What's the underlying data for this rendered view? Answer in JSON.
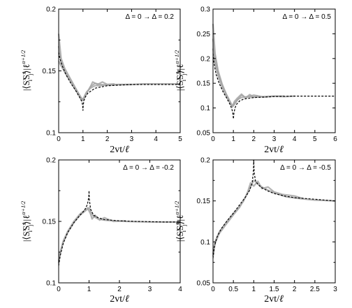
{
  "figure": {
    "xlabel_main": "2vt/",
    "xlabel_ell": "ℓ",
    "ylabel_parts": {
      "open": "|⟨S",
      "sup1": "x",
      "sub1": "i",
      "mid": "S",
      "sup2": "x",
      "sub2": "j",
      "close": "⟩|ℓ",
      "exp": "α+1/2"
    }
  },
  "colors": {
    "data_gray": "#a6a6a6",
    "theory_black": "#000000",
    "axis": "#000000"
  },
  "chart_data": [
    {
      "type": "line",
      "panel": "top-left",
      "annotation": "Δ = 0 → Δ = 0.2",
      "xlim": [
        0,
        5
      ],
      "ylim": [
        0.1,
        0.2
      ],
      "xticks": [
        0,
        1,
        2,
        3,
        4,
        5
      ],
      "xtick_labels": [
        "0",
        "1",
        "2",
        "3",
        "4",
        "5"
      ],
      "yticks": [
        0.1,
        0.15,
        0.2
      ],
      "ytick_labels": [
        "0.1",
        "0.15",
        "0.2"
      ],
      "yminor": [
        0.125,
        0.175
      ],
      "series": [
        {
          "style": "data",
          "x": [
            0,
            0.1,
            0.25,
            0.5,
            0.75,
            0.9,
            0.98,
            1.05,
            1.15,
            1.3,
            1.5,
            1.7,
            2.0,
            2.5,
            3.0,
            3.5,
            4.0,
            4.5,
            5.0
          ],
          "y": [
            0.158,
            0.154,
            0.149,
            0.141,
            0.133,
            0.128,
            0.126,
            0.129,
            0.133,
            0.136,
            0.138,
            0.138,
            0.139,
            0.139,
            0.139,
            0.1395,
            0.1395,
            0.1395,
            0.1395
          ]
        },
        {
          "style": "data",
          "x": [
            0,
            0.1,
            0.25,
            0.5,
            0.75,
            0.9,
            0.98,
            1.05,
            1.15,
            1.3,
            1.5,
            1.7,
            2.0,
            2.5,
            3.0
          ],
          "y": [
            0.18,
            0.16,
            0.152,
            0.143,
            0.134,
            0.129,
            0.127,
            0.128,
            0.132,
            0.137,
            0.14,
            0.139,
            0.1385,
            0.139,
            0.139
          ]
        },
        {
          "style": "data",
          "x": [
            0,
            0.1,
            0.25,
            0.5,
            0.75,
            0.9,
            1.0,
            1.1,
            1.25,
            1.4,
            1.6,
            1.8,
            2.0,
            2.3
          ],
          "y": [
            0.17,
            0.157,
            0.15,
            0.142,
            0.134,
            0.129,
            0.126,
            0.131,
            0.135,
            0.141,
            0.139,
            0.141,
            0.139,
            0.1395
          ]
        },
        {
          "style": "theory",
          "x": [
            0,
            0.05,
            0.15,
            0.3,
            0.5,
            0.7,
            0.85,
            0.93,
            0.97,
            0.99,
            1.0,
            1.01,
            1.04,
            1.1,
            1.2,
            1.35,
            1.5,
            1.75,
            2.0,
            2.5,
            3.0,
            4.0,
            5.0
          ],
          "y": [
            0.165,
            0.16,
            0.154,
            0.147,
            0.14,
            0.134,
            0.129,
            0.126,
            0.124,
            0.121,
            0.118,
            0.122,
            0.126,
            0.129,
            0.132,
            0.134,
            0.136,
            0.137,
            0.138,
            0.1385,
            0.139,
            0.139,
            0.139
          ]
        }
      ]
    },
    {
      "type": "line",
      "panel": "top-right",
      "annotation": "Δ = 0 → Δ = 0.5",
      "xlim": [
        0,
        6
      ],
      "ylim": [
        0.05,
        0.3
      ],
      "xticks": [
        0,
        1,
        2,
        3,
        4,
        5,
        6
      ],
      "xtick_labels": [
        "0",
        "1",
        "2",
        "3",
        "4",
        "5",
        "6"
      ],
      "yticks": [
        0.05,
        0.1,
        0.15,
        0.2,
        0.25,
        0.3
      ],
      "ytick_labels": [
        "0.05",
        "0.1",
        "0.15",
        "0.2",
        "0.25",
        "0.3"
      ],
      "yminor": [],
      "series": [
        {
          "style": "data",
          "x": [
            0,
            0.1,
            0.25,
            0.45,
            0.65,
            0.85,
            0.95,
            1.05,
            1.2,
            1.4,
            1.7,
            2.0,
            2.5,
            3.0,
            3.5
          ],
          "y": [
            0.27,
            0.21,
            0.175,
            0.148,
            0.128,
            0.112,
            0.103,
            0.11,
            0.117,
            0.121,
            0.123,
            0.122,
            0.123,
            0.124,
            0.124
          ]
        },
        {
          "style": "data",
          "x": [
            0,
            0.1,
            0.25,
            0.45,
            0.65,
            0.85,
            0.95,
            1.05,
            1.2,
            1.4,
            1.6,
            2.0,
            2.5,
            3.0,
            3.5,
            4.0
          ],
          "y": [
            0.22,
            0.19,
            0.165,
            0.142,
            0.125,
            0.11,
            0.102,
            0.107,
            0.116,
            0.126,
            0.121,
            0.126,
            0.122,
            0.124,
            0.123,
            0.124
          ]
        },
        {
          "style": "data",
          "x": [
            0,
            0.1,
            0.25,
            0.45,
            0.65,
            0.85,
            0.95,
            1.05,
            1.2,
            1.4,
            1.6,
            1.8,
            2.0,
            2.2
          ],
          "y": [
            0.24,
            0.2,
            0.17,
            0.145,
            0.127,
            0.111,
            0.104,
            0.113,
            0.12,
            0.128,
            0.12,
            0.127,
            0.122,
            0.125
          ]
        },
        {
          "style": "theory",
          "x": [
            0,
            0.05,
            0.15,
            0.3,
            0.5,
            0.7,
            0.85,
            0.93,
            0.97,
            1.0,
            1.03,
            1.08,
            1.15,
            1.3,
            1.5,
            2.0,
            2.5,
            3.0,
            4.0,
            5.0,
            6.0
          ],
          "y": [
            0.21,
            0.19,
            0.168,
            0.15,
            0.132,
            0.118,
            0.106,
            0.097,
            0.09,
            0.078,
            0.09,
            0.1,
            0.107,
            0.114,
            0.118,
            0.121,
            0.122,
            0.123,
            0.124,
            0.124,
            0.124
          ]
        }
      ]
    },
    {
      "type": "line",
      "panel": "bottom-left",
      "annotation": "Δ = 0 → Δ = -0.2",
      "xlim": [
        0,
        4
      ],
      "ylim": [
        0.1,
        0.2
      ],
      "xticks": [
        0,
        1,
        2,
        3,
        4
      ],
      "xtick_labels": [
        "0",
        "1",
        "2",
        "3",
        "4"
      ],
      "yticks": [
        0.1,
        0.15,
        0.2
      ],
      "ytick_labels": [
        "0.1",
        "0.15",
        "0.2"
      ],
      "yminor": [
        0.125,
        0.175
      ],
      "series": [
        {
          "style": "data",
          "x": [
            0,
            0.05,
            0.15,
            0.3,
            0.5,
            0.7,
            0.85,
            0.95,
            1.0,
            1.05,
            1.15,
            1.3,
            1.5,
            1.8,
            2.2,
            2.6,
            3.0,
            3.5,
            4.0
          ],
          "y": [
            0.116,
            0.124,
            0.133,
            0.141,
            0.149,
            0.155,
            0.158,
            0.16,
            0.161,
            0.158,
            0.154,
            0.152,
            0.151,
            0.1505,
            0.15,
            0.1498,
            0.1495,
            0.1495,
            0.1495
          ]
        },
        {
          "style": "data",
          "x": [
            0,
            0.05,
            0.15,
            0.3,
            0.5,
            0.7,
            0.85,
            0.95,
            1.05,
            1.1,
            1.2,
            1.35,
            1.5,
            1.8,
            2.2
          ],
          "y": [
            0.118,
            0.125,
            0.134,
            0.142,
            0.15,
            0.156,
            0.159,
            0.161,
            0.156,
            0.152,
            0.155,
            0.151,
            0.153,
            0.15,
            0.1505
          ]
        },
        {
          "style": "theory",
          "x": [
            0,
            0.05,
            0.15,
            0.3,
            0.5,
            0.7,
            0.85,
            0.95,
            0.99,
            1.0,
            1.01,
            1.05,
            1.15,
            1.3,
            1.5,
            2.0,
            2.5,
            3.0,
            3.5,
            4.0
          ],
          "y": [
            0.114,
            0.122,
            0.132,
            0.141,
            0.149,
            0.155,
            0.159,
            0.164,
            0.17,
            0.175,
            0.168,
            0.16,
            0.155,
            0.153,
            0.1515,
            0.1505,
            0.15,
            0.1498,
            0.1495,
            0.1495
          ]
        }
      ]
    },
    {
      "type": "line",
      "panel": "bottom-right",
      "annotation": "Δ = 0 → Δ = -0.5",
      "xlim": [
        0,
        3
      ],
      "ylim": [
        0.05,
        0.2
      ],
      "xticks": [
        0,
        0.5,
        1,
        1.5,
        2,
        2.5,
        3
      ],
      "xtick_labels": [
        "0",
        "0.5",
        "1",
        "1.5",
        "2",
        "2.5",
        "3"
      ],
      "yticks": [
        0.05,
        0.1,
        0.15,
        0.2
      ],
      "ytick_labels": [
        "0.05",
        "0.1",
        "0.15",
        "0.2"
      ],
      "yminor": [
        0.075,
        0.125,
        0.175
      ],
      "series": [
        {
          "style": "data",
          "x": [
            0,
            0.05,
            0.15,
            0.3,
            0.5,
            0.65,
            0.8,
            0.9,
            0.95,
            1.0,
            1.1,
            1.2,
            1.35,
            1.5,
            1.8,
            2.1,
            2.5,
            3.0
          ],
          "y": [
            0.082,
            0.098,
            0.11,
            0.12,
            0.133,
            0.142,
            0.155,
            0.165,
            0.17,
            0.175,
            0.171,
            0.167,
            0.163,
            0.16,
            0.155,
            0.153,
            0.151,
            0.15
          ]
        },
        {
          "style": "data",
          "x": [
            0,
            0.05,
            0.15,
            0.3,
            0.5,
            0.65,
            0.75,
            0.85,
            0.92,
            1.0,
            1.1,
            1.2,
            1.35,
            1.5,
            1.7,
            2.0,
            2.2
          ],
          "y": [
            0.085,
            0.1,
            0.112,
            0.122,
            0.135,
            0.143,
            0.15,
            0.161,
            0.172,
            0.168,
            0.174,
            0.165,
            0.167,
            0.161,
            0.158,
            0.156,
            0.153
          ]
        },
        {
          "style": "theory",
          "x": [
            0,
            0.03,
            0.1,
            0.2,
            0.35,
            0.5,
            0.65,
            0.8,
            0.9,
            0.96,
            0.99,
            1.0,
            1.01,
            1.04,
            1.1,
            1.2,
            1.35,
            1.5,
            1.75,
            2.0,
            2.5,
            3.0
          ],
          "y": [
            0.08,
            0.094,
            0.106,
            0.116,
            0.126,
            0.135,
            0.145,
            0.155,
            0.163,
            0.172,
            0.185,
            0.2,
            0.185,
            0.175,
            0.17,
            0.166,
            0.162,
            0.159,
            0.156,
            0.154,
            0.152,
            0.15
          ]
        }
      ]
    }
  ]
}
